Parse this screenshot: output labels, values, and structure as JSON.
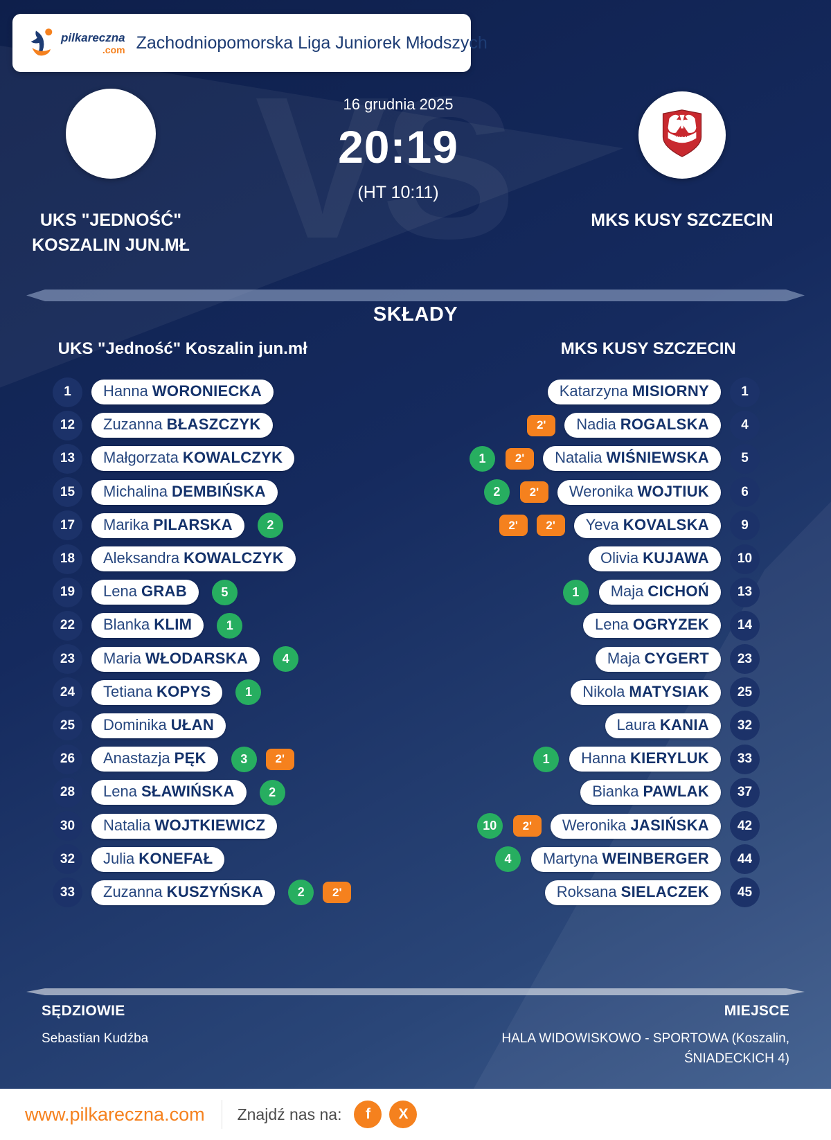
{
  "header": {
    "logo_name": "pilkareczna",
    "logo_tld": ".com",
    "league": "Zachodniopomorska Liga Juniorek Młodszych"
  },
  "match": {
    "date": "16 grudnia 2025",
    "score": "20:19",
    "halftime": "(HT 10:11)",
    "vs_watermark": "VS"
  },
  "teams": {
    "home": {
      "name_line1": "UKS \"JEDNOŚĆ\"",
      "name_line2": "KOSZALIN JUN.MŁ"
    },
    "away": {
      "name": "MKS KUSY SZCZECIN"
    }
  },
  "lineups": {
    "title": "SKŁADY",
    "home": {
      "header": "UKS \"Jedność\" Koszalin jun.mł",
      "players": [
        {
          "number": "1",
          "first": "Hanna",
          "last": "WORONIECKA",
          "goals": null,
          "cards": []
        },
        {
          "number": "12",
          "first": "Zuzanna",
          "last": "BŁASZCZYK",
          "goals": null,
          "cards": []
        },
        {
          "number": "13",
          "first": "Małgorzata",
          "last": "KOWALCZYK",
          "goals": null,
          "cards": []
        },
        {
          "number": "15",
          "first": "Michalina",
          "last": "DEMBIŃSKA",
          "goals": null,
          "cards": []
        },
        {
          "number": "17",
          "first": "Marika",
          "last": "PILARSKA",
          "goals": "2",
          "cards": []
        },
        {
          "number": "18",
          "first": "Aleksandra",
          "last": "KOWALCZYK",
          "goals": null,
          "cards": []
        },
        {
          "number": "19",
          "first": "Lena",
          "last": "GRAB",
          "goals": "5",
          "cards": []
        },
        {
          "number": "22",
          "first": "Blanka",
          "last": "KLIM",
          "goals": "1",
          "cards": []
        },
        {
          "number": "23",
          "first": "Maria",
          "last": "WŁODARSKA",
          "goals": "4",
          "cards": []
        },
        {
          "number": "24",
          "first": "Tetiana",
          "last": "KOPYS",
          "goals": "1",
          "cards": []
        },
        {
          "number": "25",
          "first": "Dominika",
          "last": "UŁAN",
          "goals": null,
          "cards": []
        },
        {
          "number": "26",
          "first": "Anastazja",
          "last": "PĘK",
          "goals": "3",
          "cards": [
            "2'"
          ]
        },
        {
          "number": "28",
          "first": "Lena",
          "last": "SŁAWIŃSKA",
          "goals": "2",
          "cards": []
        },
        {
          "number": "30",
          "first": "Natalia",
          "last": "WOJTKIEWICZ",
          "goals": null,
          "cards": []
        },
        {
          "number": "32",
          "first": "Julia",
          "last": "KONEFAŁ",
          "goals": null,
          "cards": []
        },
        {
          "number": "33",
          "first": "Zuzanna",
          "last": "KUSZYŃSKA",
          "goals": "2",
          "cards": [
            "2'"
          ]
        }
      ]
    },
    "away": {
      "header": "MKS KUSY SZCZECIN",
      "players": [
        {
          "number": "1",
          "first": "Katarzyna",
          "last": "MISIORNY",
          "goals": null,
          "cards": []
        },
        {
          "number": "4",
          "first": "Nadia",
          "last": "ROGALSKA",
          "goals": null,
          "cards": [
            "2'"
          ]
        },
        {
          "number": "5",
          "first": "Natalia",
          "last": "WIŚNIEWSKA",
          "goals": "1",
          "cards": [
            "2'"
          ]
        },
        {
          "number": "6",
          "first": "Weronika",
          "last": "WOJTIUK",
          "goals": "2",
          "cards": [
            "2'"
          ]
        },
        {
          "number": "9",
          "first": "Yeva",
          "last": "KOVALSKA",
          "goals": null,
          "cards": [
            "2'",
            "2'"
          ]
        },
        {
          "number": "10",
          "first": "Olivia",
          "last": "KUJAWA",
          "goals": null,
          "cards": []
        },
        {
          "number": "13",
          "first": "Maja",
          "last": "CICHOŃ",
          "goals": "1",
          "cards": []
        },
        {
          "number": "14",
          "first": "Lena",
          "last": "OGRYZEK",
          "goals": null,
          "cards": []
        },
        {
          "number": "23",
          "first": "Maja",
          "last": "CYGERT",
          "goals": null,
          "cards": []
        },
        {
          "number": "25",
          "first": "Nikola",
          "last": "MATYSIAK",
          "goals": null,
          "cards": []
        },
        {
          "number": "32",
          "first": "Laura",
          "last": "KANIA",
          "goals": null,
          "cards": []
        },
        {
          "number": "33",
          "first": "Hanna",
          "last": "KIERYLUK",
          "goals": "1",
          "cards": []
        },
        {
          "number": "37",
          "first": "Bianka",
          "last": "PAWLAK",
          "goals": null,
          "cards": []
        },
        {
          "number": "42",
          "first": "Weronika",
          "last": "JASIŃSKA",
          "goals": "10",
          "cards": [
            "2'"
          ]
        },
        {
          "number": "44",
          "first": "Martyna",
          "last": "WEINBERGER",
          "goals": "4",
          "cards": []
        },
        {
          "number": "45",
          "first": "Roksana",
          "last": "SIELACZEK",
          "goals": null,
          "cards": []
        }
      ]
    }
  },
  "footer": {
    "referees_label": "SĘDZIOWIE",
    "referee": "Sebastian Kudźba",
    "venue_label": "MIEJSCE",
    "venue": "HALA WIDOWISKOWO - SPORTOWA (Koszalin, ŚNIADECKICH 4)"
  },
  "bottom_bar": {
    "url": "www.pilkareczna.com",
    "find_us": "Znajdź nas na:",
    "social": [
      {
        "icon": "facebook-icon",
        "glyph": "f"
      },
      {
        "icon": "x-icon",
        "glyph": "X"
      }
    ]
  },
  "colors": {
    "background_navy": "#152a5e",
    "accent_orange": "#f5811e",
    "goal_green": "#27ae60",
    "pill_text_navy": "#14326b",
    "crest_red": "#c8292f"
  }
}
